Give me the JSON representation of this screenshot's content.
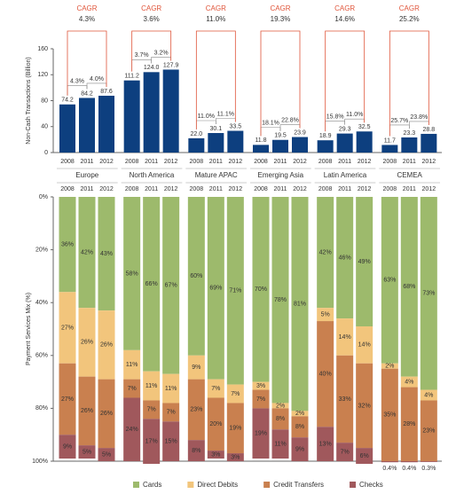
{
  "chart_data": [
    {
      "type": "bar",
      "ylabel": "Non-Cash Transactions (Billion)",
      "color": "#0d3f7f",
      "cagr_title": "CAGR",
      "ylim": [
        0,
        160
      ],
      "yticks": [
        0,
        40,
        80,
        120,
        160
      ],
      "groups": [
        {
          "name": "Europe",
          "cagr": "4.3%",
          "categories": [
            "2008",
            "2011",
            "2012"
          ],
          "values": [
            74.2,
            84.2,
            87.6
          ],
          "value_labels": [
            "74.2",
            "84.2",
            "87.6"
          ],
          "growth_labels": [
            "4.3%",
            "4.0%"
          ]
        },
        {
          "name": "North America",
          "cagr": "3.6%",
          "categories": [
            "2008",
            "2011",
            "2012"
          ],
          "values": [
            111.2,
            124.0,
            127.9
          ],
          "value_labels": [
            "111.2",
            "124.0",
            "127.9"
          ],
          "growth_labels": [
            "3.7%",
            "3.2%"
          ]
        },
        {
          "name": "Mature APAC",
          "cagr": "11.0%",
          "categories": [
            "2008",
            "2011",
            "2012"
          ],
          "values": [
            22.0,
            30.1,
            33.5
          ],
          "value_labels": [
            "22.0",
            "30.1",
            "33.5"
          ],
          "growth_labels": [
            "11.0%",
            "11.1%"
          ]
        },
        {
          "name": "Emerging Asia",
          "cagr": "19.3%",
          "categories": [
            "2008",
            "2011",
            "2012"
          ],
          "values": [
            11.8,
            19.5,
            23.9
          ],
          "value_labels": [
            "11.8",
            "19.5",
            "23.9"
          ],
          "growth_labels": [
            "18.1%",
            "22.8%"
          ]
        },
        {
          "name": "Latin America",
          "cagr": "14.6%",
          "categories": [
            "2008",
            "2011",
            "2012"
          ],
          "values": [
            18.9,
            29.3,
            32.5
          ],
          "value_labels": [
            "18.9",
            "29.3",
            "32.5"
          ],
          "growth_labels": [
            "15.8%",
            "11.0%"
          ]
        },
        {
          "name": "CEMEA",
          "cagr": "25.2%",
          "categories": [
            "2008",
            "2011",
            "2012"
          ],
          "values": [
            11.7,
            23.3,
            28.8
          ],
          "value_labels": [
            "11.7",
            "23.3",
            "28.8"
          ],
          "growth_labels": [
            "25.7%",
            "23.8%"
          ]
        }
      ]
    },
    {
      "type": "stacked_bar",
      "ylabel": "Payment Services Mix (%)",
      "y_inverted": true,
      "ylim": [
        0,
        100
      ],
      "yticks": [
        {
          "value": 0,
          "label": "0%"
        },
        {
          "value": 20,
          "label": "20%"
        },
        {
          "value": 40,
          "label": "40%"
        },
        {
          "value": 60,
          "label": "60%"
        },
        {
          "value": 80,
          "label": "80%"
        },
        {
          "value": 100,
          "label": "100%"
        }
      ],
      "categories": [
        "2008",
        "2011",
        "2012",
        "2008",
        "2011",
        "2012",
        "2008",
        "2011",
        "2012",
        "2008",
        "2011",
        "2012",
        "2008",
        "2011",
        "2012",
        "2008",
        "2011",
        "2012"
      ],
      "series": [
        {
          "name": "Cards",
          "color": "#9dba6c",
          "values": [
            36,
            42,
            43,
            58,
            66,
            67,
            60,
            69,
            71,
            70,
            78,
            81,
            42,
            46,
            49,
            63,
            68,
            73
          ],
          "value_labels": [
            "36%",
            "42%",
            "43%",
            "58%",
            "66%",
            "67%",
            "60%",
            "69%",
            "71%",
            "70%",
            "78%",
            "81%",
            "42%",
            "46%",
            "49%",
            "63%",
            "68%",
            "73%"
          ]
        },
        {
          "name": "Direct Debits",
          "color": "#f2c57c",
          "values": [
            27,
            26,
            26,
            11,
            11,
            11,
            9,
            7,
            7,
            3,
            2,
            2,
            5,
            14,
            14,
            2,
            4,
            4
          ],
          "value_labels": [
            "27%",
            "26%",
            "26%",
            "11%",
            "11%",
            "11%",
            "9%",
            "7%",
            "7%",
            "3%",
            "2%",
            "2%",
            "5%",
            "14%",
            "14%",
            "2%",
            "4%",
            "4%"
          ]
        },
        {
          "name": "Credit Transfers",
          "color": "#c9804f",
          "values": [
            27,
            26,
            26,
            7,
            7,
            7,
            23,
            20,
            19,
            7,
            8,
            8,
            40,
            33,
            32,
            35,
            28,
            23
          ],
          "value_labels": [
            "27%",
            "26%",
            "26%",
            "7%",
            "7%",
            "7%",
            "23%",
            "20%",
            "19%",
            "7%",
            "8%",
            "8%",
            "40%",
            "33%",
            "32%",
            "35%",
            "28%",
            "23%"
          ]
        },
        {
          "name": "Checks",
          "color": "#a0585c",
          "values": [
            9,
            5,
            5,
            24,
            17,
            15,
            8,
            3,
            3,
            19,
            11,
            9,
            13,
            7,
            6,
            0.4,
            0.4,
            0.3
          ],
          "value_labels": [
            "9%",
            "5%",
            "5%",
            "24%",
            "17%",
            "15%",
            "8%",
            "3%",
            "3%",
            "19%",
            "11%",
            "9%",
            "13%",
            "7%",
            "6%",
            "0.4%",
            "0.4%",
            "0.3%"
          ]
        }
      ]
    }
  ]
}
